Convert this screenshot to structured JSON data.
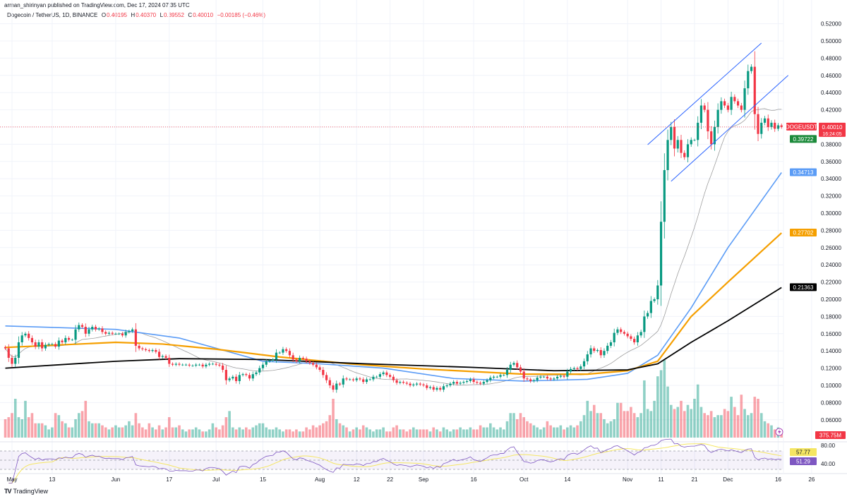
{
  "header": {
    "published": "arman_shirinyan published on TradingView.com, Dec 17, 2024 07:35 UTC",
    "symbol": "Dogecoin / TetherUS, 1D, BINANCE",
    "o_label": "O",
    "o_value": "0.40195",
    "h_label": "H",
    "h_value": "0.40370",
    "l_label": "L",
    "l_value": "0.39552",
    "c_label": "C",
    "c_value": "0.40010",
    "change": "−0.00185 (−0.46%)"
  },
  "footer": {
    "logo_text": "TradingView",
    "logo_icon": "tradingview-logo"
  },
  "colors": {
    "up": "#089981",
    "down": "#f23645",
    "ma20": "#9e9e9e",
    "ma50": "#5b9cf6",
    "ma100": "#f59f00",
    "ma200": "#000000",
    "rsi": "#7e57c2",
    "rsi_ma": "#f5e663",
    "channel": "#2962ff"
  },
  "chart_data": {
    "type": "candlestick",
    "symbol": "DOGEUSDT",
    "interval": "1D",
    "start_date": "2024-04-29",
    "closes": {
      "apr": [
        0.143,
        0.132
      ],
      "may": [
        0.125,
        0.132,
        0.15,
        0.158,
        0.16,
        0.155,
        0.15,
        0.145,
        0.15,
        0.143,
        0.147,
        0.148,
        0.148,
        0.145,
        0.152,
        0.15,
        0.155,
        0.153,
        0.153,
        0.165,
        0.17,
        0.168,
        0.16,
        0.165,
        0.168,
        0.165,
        0.166,
        0.162,
        0.16,
        0.161,
        0.16
      ],
      "jun": [
        0.16,
        0.16,
        0.158,
        0.162,
        0.163,
        0.165,
        0.146,
        0.143,
        0.142,
        0.141,
        0.14,
        0.141,
        0.139,
        0.133,
        0.134,
        0.132,
        0.125,
        0.124,
        0.125,
        0.124,
        0.124,
        0.124,
        0.123,
        0.123,
        0.124,
        0.124,
        0.122,
        0.124,
        0.125,
        0.125
      ],
      "jul": [
        0.124,
        0.123,
        0.118,
        0.106,
        0.108,
        0.11,
        0.105,
        0.112,
        0.113,
        0.112,
        0.108,
        0.113,
        0.115,
        0.12,
        0.124,
        0.128,
        0.129,
        0.13,
        0.138,
        0.138,
        0.142,
        0.14,
        0.135,
        0.13,
        0.128,
        0.132,
        0.131,
        0.128,
        0.126,
        0.124,
        0.121
      ],
      "aug": [
        0.118,
        0.112,
        0.106,
        0.1,
        0.095,
        0.102,
        0.101,
        0.108,
        0.107,
        0.107,
        0.106,
        0.108,
        0.107,
        0.104,
        0.107,
        0.107,
        0.11,
        0.11,
        0.113,
        0.115,
        0.112,
        0.11,
        0.106,
        0.103,
        0.104,
        0.103,
        0.102,
        0.1,
        0.101,
        0.102,
        0.101
      ],
      "sep": [
        0.1,
        0.097,
        0.098,
        0.095,
        0.097,
        0.095,
        0.099,
        0.1,
        0.102,
        0.104,
        0.102,
        0.103,
        0.104,
        0.105,
        0.107,
        0.104,
        0.103,
        0.102,
        0.104,
        0.106,
        0.109,
        0.11,
        0.11,
        0.112,
        0.112,
        0.118,
        0.124,
        0.126,
        0.121,
        0.116
      ],
      "oct": [
        0.108,
        0.107,
        0.105,
        0.106,
        0.109,
        0.11,
        0.11,
        0.108,
        0.107,
        0.108,
        0.11,
        0.111,
        0.11,
        0.116,
        0.119,
        0.12,
        0.119,
        0.122,
        0.128,
        0.136,
        0.143,
        0.14,
        0.141,
        0.135,
        0.14,
        0.146,
        0.15,
        0.161,
        0.165,
        0.162,
        0.16
      ],
      "nov": [
        0.157,
        0.154,
        0.15,
        0.158,
        0.162,
        0.18,
        0.184,
        0.198,
        0.2,
        0.216,
        0.29,
        0.35,
        0.385,
        0.4,
        0.375,
        0.385,
        0.37,
        0.365,
        0.38,
        0.385,
        0.385,
        0.405,
        0.425,
        0.42,
        0.395,
        0.38,
        0.4,
        0.42,
        0.43,
        0.425
      ],
      "dec": [
        0.42,
        0.435,
        0.43,
        0.425,
        0.42,
        0.445,
        0.465,
        0.47,
        0.415,
        0.392,
        0.405,
        0.41,
        0.4,
        0.405,
        0.398,
        0.402,
        0.4001
      ]
    },
    "volume_m": {
      "apr": [
        900,
        1000
      ],
      "may": [
        1200,
        1900,
        1000,
        900,
        1800,
        1000,
        1200,
        700,
        700,
        700,
        600,
        400,
        500,
        1200,
        1100,
        800,
        700,
        500,
        500,
        900,
        1200,
        1300,
        1800,
        800,
        700,
        700,
        700,
        600,
        500,
        400,
        500
      ],
      "jun": [
        600,
        500,
        500,
        600,
        800,
        600,
        1200,
        700,
        500,
        400,
        700,
        500,
        400,
        600,
        400,
        500,
        1000,
        500,
        500,
        600,
        400,
        300,
        400,
        400,
        500,
        400,
        300,
        300,
        400,
        700
      ],
      "jul": [
        500,
        400,
        600,
        1000,
        1300,
        500,
        400,
        500,
        400,
        500,
        400,
        500,
        600,
        700,
        700,
        500,
        400,
        400,
        500,
        400,
        300,
        400,
        400,
        300,
        400,
        300,
        300,
        500,
        400,
        600,
        500
      ],
      "aug": [
        600,
        700,
        800,
        1100,
        1900,
        900,
        700,
        600,
        500,
        300,
        400,
        500,
        400,
        600,
        500,
        400,
        300,
        400,
        400,
        500,
        300,
        300,
        500,
        600,
        400,
        400,
        300,
        400,
        500,
        400,
        400
      ],
      "sep": [
        400,
        400,
        300,
        500,
        400,
        300,
        500,
        400,
        300,
        400,
        400,
        500,
        400,
        400,
        500,
        400,
        400,
        600,
        500,
        500,
        700,
        500,
        400,
        500,
        400,
        800,
        1200,
        1200,
        900,
        1200
      ],
      "oct": [
        1000,
        800,
        700,
        600,
        500,
        400,
        500,
        800,
        600,
        500,
        500,
        600,
        400,
        500,
        600,
        500,
        600,
        800,
        1100,
        1800,
        1300,
        1600,
        1200,
        1200,
        900,
        700,
        800,
        900,
        1700,
        1700,
        1300
      ],
      "nov": [
        1300,
        1500,
        1200,
        1000,
        1200,
        2800,
        1400,
        1300,
        1800,
        3000,
        3300,
        3800,
        2500,
        1600,
        1400,
        1500,
        1800,
        1300,
        1600,
        1400,
        1900,
        2600,
        1500,
        1200,
        1100,
        1300,
        1000,
        1100,
        1100,
        1400
      ],
      "dec": [
        1300,
        2000,
        1500,
        1100,
        2100,
        1400,
        1100,
        1200,
        2000,
        1900,
        1200,
        800,
        700,
        600,
        400,
        500,
        375.75
      ]
    },
    "moving_averages": [
      {
        "id": "ma50",
        "points": [
          [
            "2024-04-29",
            0.169
          ],
          [
            "2024-06-01",
            0.165
          ],
          [
            "2024-06-20",
            0.155
          ],
          [
            "2024-07-15",
            0.128
          ],
          [
            "2024-08-01",
            0.125
          ],
          [
            "2024-08-20",
            0.12
          ],
          [
            "2024-09-10",
            0.108
          ],
          [
            "2024-10-01",
            0.105
          ],
          [
            "2024-10-20",
            0.107
          ],
          [
            "2024-11-01",
            0.114
          ],
          [
            "2024-11-10",
            0.135
          ],
          [
            "2024-11-20",
            0.19
          ],
          [
            "2024-12-01",
            0.26
          ],
          [
            "2024-12-17",
            0.34713
          ]
        ]
      },
      {
        "id": "ma100",
        "points": [
          [
            "2024-04-29",
            0.144
          ],
          [
            "2024-06-01",
            0.15
          ],
          [
            "2024-06-15",
            0.148
          ],
          [
            "2024-07-01",
            0.142
          ],
          [
            "2024-07-20",
            0.133
          ],
          [
            "2024-08-10",
            0.125
          ],
          [
            "2024-09-01",
            0.119
          ],
          [
            "2024-10-01",
            0.113
          ],
          [
            "2024-10-20",
            0.113
          ],
          [
            "2024-11-01",
            0.117
          ],
          [
            "2024-11-10",
            0.128
          ],
          [
            "2024-11-20",
            0.18
          ],
          [
            "2024-12-01",
            0.22
          ],
          [
            "2024-12-17",
            0.27702
          ]
        ]
      },
      {
        "id": "ma200",
        "points": [
          [
            "2024-04-29",
            0.12
          ],
          [
            "2024-06-01",
            0.128
          ],
          [
            "2024-06-20",
            0.131
          ],
          [
            "2024-07-15",
            0.13
          ],
          [
            "2024-08-15",
            0.125
          ],
          [
            "2024-09-15",
            0.121
          ],
          [
            "2024-10-10",
            0.117
          ],
          [
            "2024-11-01",
            0.118
          ],
          [
            "2024-11-10",
            0.125
          ],
          [
            "2024-11-20",
            0.15
          ],
          [
            "2024-12-01",
            0.175
          ],
          [
            "2024-12-17",
            0.21363
          ]
        ]
      }
    ],
    "channel": {
      "upper": [
        [
          "2024-11-07",
          0.3795
        ],
        [
          "2024-12-11",
          0.4975
        ]
      ],
      "lower": [
        [
          "2024-11-14",
          0.337
        ],
        [
          "2024-12-19",
          0.46
        ]
      ]
    },
    "price_axis": [
      "0.52000",
      "0.50000",
      "0.48000",
      "0.46000",
      "0.44000",
      "0.42000",
      "0.38000",
      "0.36000",
      "0.34000",
      "0.32000",
      "0.30000",
      "0.28000",
      "0.26000",
      "0.24000",
      "0.22000",
      "0.20000",
      "0.18000",
      "0.16000",
      "0.14000",
      "0.12000",
      "0.10000",
      "0.08000",
      "0.06000"
    ],
    "price_tags": [
      {
        "text": "DOGEUSDT",
        "value": 0.4001,
        "color": "#f23645",
        "side": "left"
      },
      {
        "text": "0.40010",
        "value": 0.4001,
        "color": "#f23645",
        "sub": "16:24:05"
      },
      {
        "text": "0.39722",
        "value": 0.39722,
        "color": "#1b8a3a"
      },
      {
        "text": "0.34713",
        "value": 0.34713,
        "color": "#5b9cf6"
      },
      {
        "text": "0.27702",
        "value": 0.27702,
        "color": "#f59f00"
      },
      {
        "text": "0.21363",
        "value": 0.21363,
        "color": "#000000"
      }
    ],
    "volume_tag": "375.75M",
    "rsi_axis": [
      "80.00",
      "40.00"
    ],
    "rsi_tags": [
      {
        "text": "57.77",
        "color": "#f5e663"
      },
      {
        "text": "51.29",
        "color": "#7e57c2"
      }
    ],
    "time_axis": [
      [
        "2024-05-01",
        "May"
      ],
      [
        "2024-05-13",
        "13"
      ],
      [
        "2024-06-01",
        "Jun"
      ],
      [
        "2024-06-17",
        "17"
      ],
      [
        "2024-07-01",
        "Jul"
      ],
      [
        "2024-07-15",
        "15"
      ],
      [
        "2024-08-01",
        "Aug"
      ],
      [
        "2024-08-12",
        "12"
      ],
      [
        "2024-08-22",
        "22"
      ],
      [
        "2024-09-01",
        "Sep"
      ],
      [
        "2024-09-16",
        "16"
      ],
      [
        "2024-10-01",
        "Oct"
      ],
      [
        "2024-10-14",
        "14"
      ],
      [
        "2024-11-01",
        "Nov"
      ],
      [
        "2024-11-11",
        "11"
      ],
      [
        "2024-11-21",
        "21"
      ],
      [
        "2024-12-01",
        "Dec"
      ],
      [
        "2024-12-16",
        "16"
      ],
      [
        "2024-12-26",
        "26"
      ]
    ],
    "grid": true
  }
}
